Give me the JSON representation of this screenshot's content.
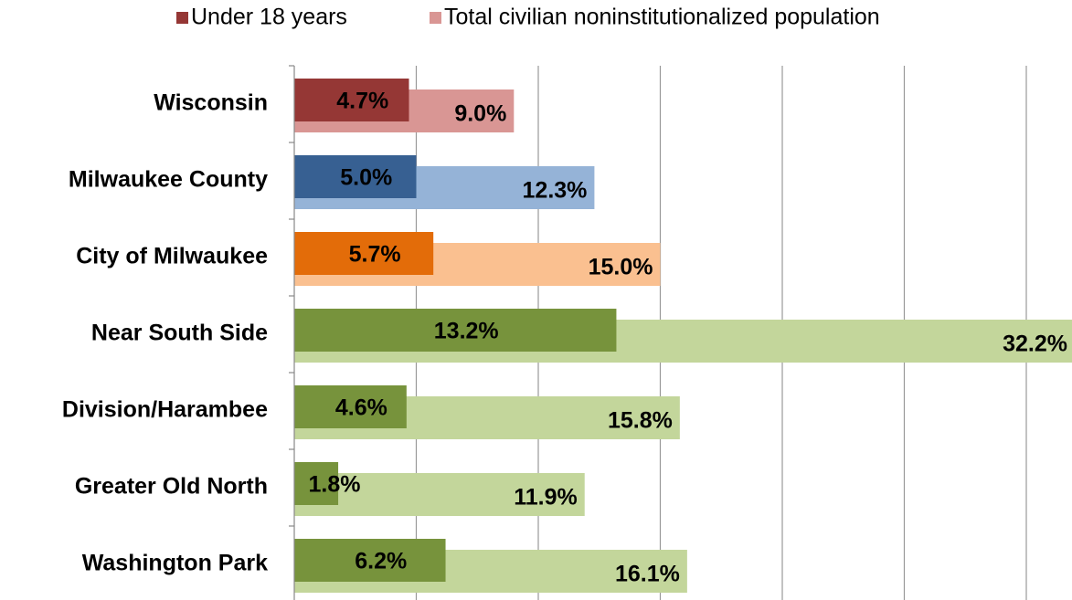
{
  "chart_data": {
    "type": "bar",
    "orientation": "horizontal",
    "categories": [
      "Wisconsin",
      "Milwaukee County",
      "City of Milwaukee",
      "Near South Side",
      "Division/Harambee",
      "Greater Old North",
      "Washington Park"
    ],
    "series": [
      {
        "name": "Under 18 years",
        "color": "#953735",
        "colors": [
          "#953735",
          "#376092",
          "#e36c09",
          "#77933c",
          "#77933c",
          "#77933c",
          "#77933c"
        ],
        "values": [
          4.7,
          5.0,
          5.7,
          13.2,
          4.6,
          1.8,
          6.2
        ],
        "value_labels": [
          "4.7%",
          "5.0%",
          "5.7%",
          "13.2%",
          "4.6%",
          "1.8%",
          "6.2%"
        ]
      },
      {
        "name": "Total civilian noninstitutionalized population",
        "color": "#d99694",
        "colors": [
          "#d99694",
          "#95b3d7",
          "#fac090",
          "#c3d69b",
          "#c3d69b",
          "#c3d69b",
          "#c3d69b"
        ],
        "values": [
          9.0,
          12.3,
          15.0,
          32.2,
          15.8,
          11.9,
          16.1
        ],
        "value_labels": [
          "9.0%",
          "12.3%",
          "15.0%",
          "32.2%",
          "15.8%",
          "11.9%",
          "16.1%"
        ]
      }
    ],
    "xlim": [
      0,
      35
    ],
    "xticks": [
      0,
      5,
      10,
      15,
      20,
      25,
      30
    ],
    "grid": true,
    "legend": "top"
  }
}
